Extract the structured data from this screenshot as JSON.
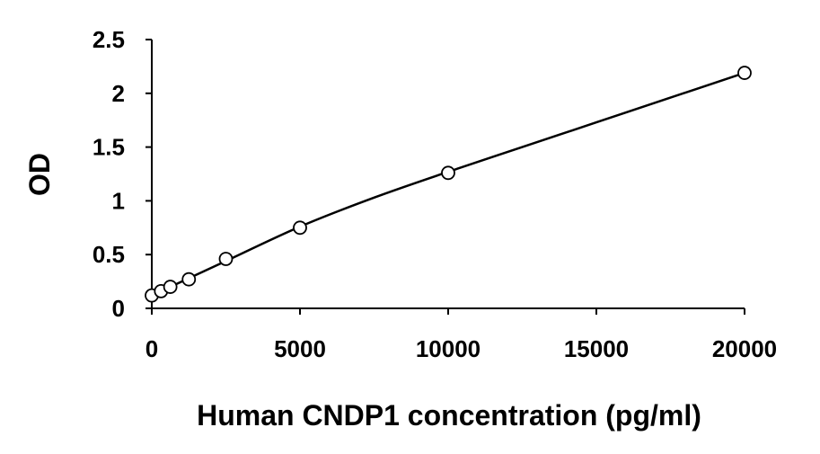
{
  "chart_data": {
    "type": "scatter",
    "title": "",
    "xlabel": "Human CNDP1 concentration (pg/ml)",
    "ylabel": "OD",
    "xlim": [
      0,
      20000
    ],
    "ylim": [
      0,
      2.5
    ],
    "x_ticks": [
      "0",
      "5000",
      "10000",
      "15000",
      "20000"
    ],
    "y_ticks": [
      "0",
      "0.5",
      "1",
      "1.5",
      "2",
      "2.5"
    ],
    "grid": false,
    "legend": "none",
    "series": [
      {
        "marker": "open-circle",
        "color": "#000000",
        "points": [
          {
            "x": 0,
            "y": 0.12
          },
          {
            "x": 312.5,
            "y": 0.16
          },
          {
            "x": 625,
            "y": 0.2
          },
          {
            "x": 1250,
            "y": 0.27
          },
          {
            "x": 2500,
            "y": 0.46
          },
          {
            "x": 5000,
            "y": 0.75
          },
          {
            "x": 10000,
            "y": 1.26
          },
          {
            "x": 20000,
            "y": 2.19
          }
        ]
      }
    ],
    "fit_curve": {
      "color": "#000000",
      "points": [
        {
          "x": 0,
          "y": 0.12
        },
        {
          "x": 625,
          "y": 0.2
        },
        {
          "x": 1250,
          "y": 0.28
        },
        {
          "x": 2500,
          "y": 0.44
        },
        {
          "x": 5000,
          "y": 0.76
        },
        {
          "x": 7500,
          "y": 1.03
        },
        {
          "x": 10000,
          "y": 1.27
        },
        {
          "x": 12500,
          "y": 1.5
        },
        {
          "x": 15000,
          "y": 1.73
        },
        {
          "x": 17500,
          "y": 1.96
        },
        {
          "x": 20000,
          "y": 2.19
        }
      ]
    }
  }
}
